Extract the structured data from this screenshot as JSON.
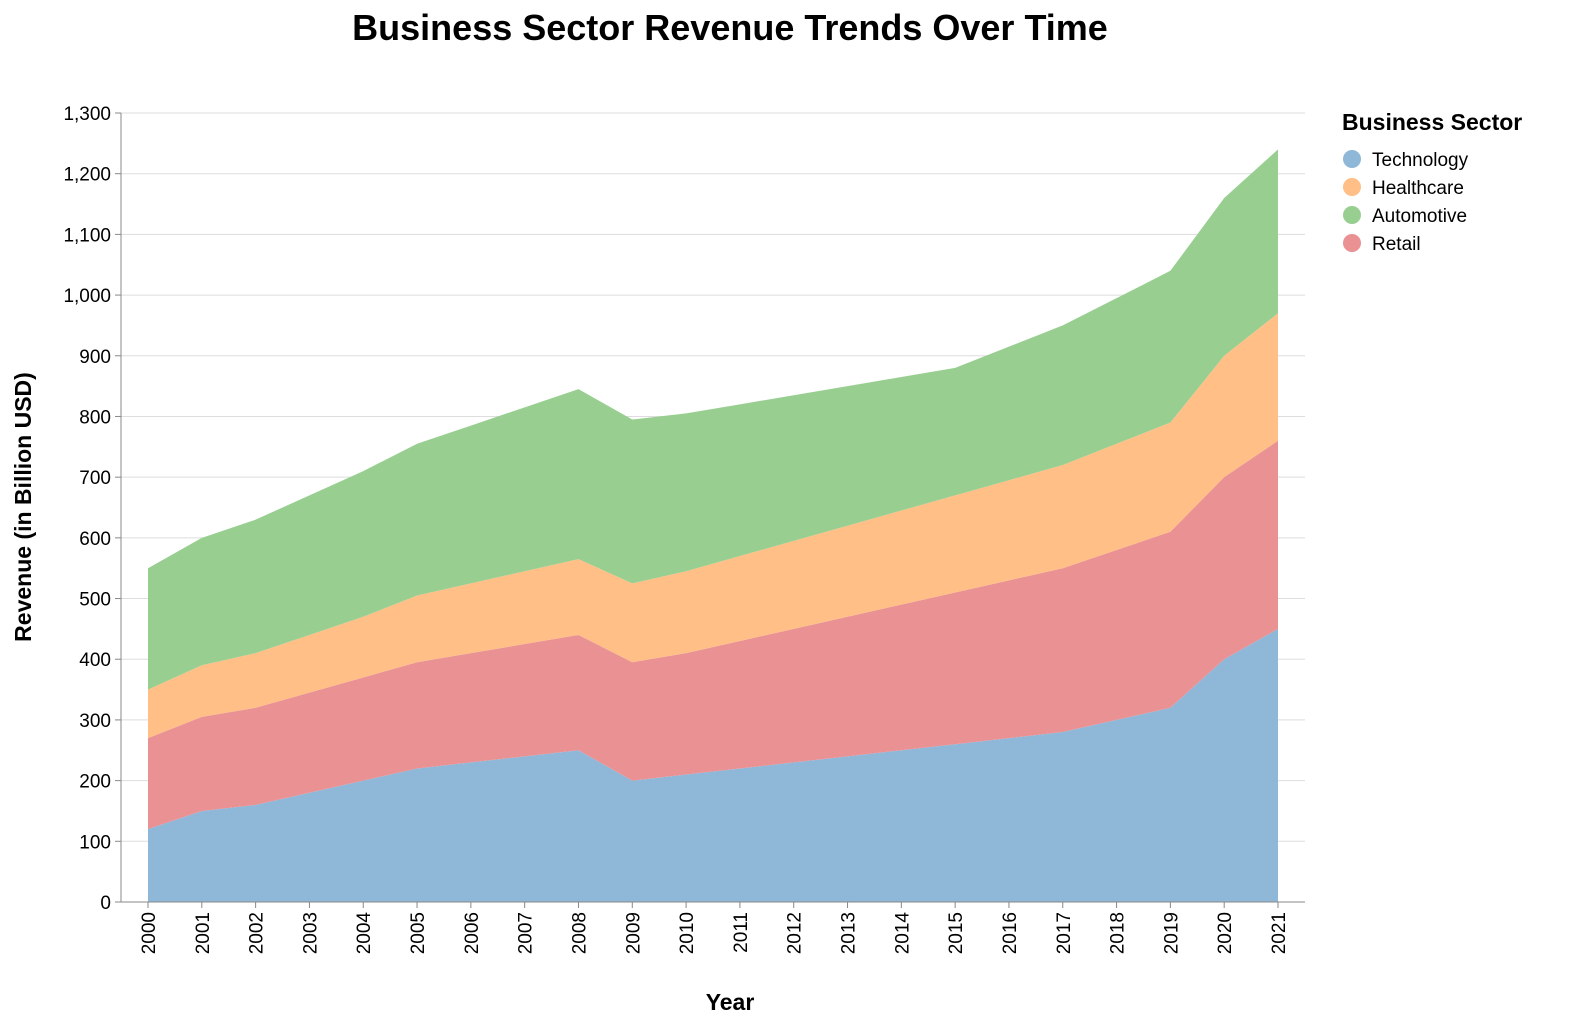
{
  "chart_data": {
    "type": "area",
    "stacked": true,
    "title": "Business Sector Revenue Trends Over Time",
    "xlabel": "Year",
    "ylabel": "Revenue (in Billion USD)",
    "ylim": [
      0,
      1300
    ],
    "yticks": [
      0,
      100,
      200,
      300,
      400,
      500,
      600,
      700,
      800,
      900,
      1000,
      1100,
      1200,
      1300
    ],
    "ytick_labels": [
      "0",
      "100",
      "200",
      "300",
      "400",
      "500",
      "600",
      "700",
      "800",
      "900",
      "1,000",
      "1,100",
      "1,200",
      "1,300"
    ],
    "grid": true,
    "legend": {
      "title": "Business Sector",
      "placement": "right"
    },
    "x": [
      "2000",
      "2001",
      "2002",
      "2003",
      "2004",
      "2005",
      "2006",
      "2007",
      "2008",
      "2009",
      "2010",
      "2011",
      "2012",
      "2013",
      "2014",
      "2015",
      "2016",
      "2017",
      "2018",
      "2019",
      "2020",
      "2021"
    ],
    "series": [
      {
        "name": "Technology",
        "color": "#8fb8d8",
        "values": [
          120,
          150,
          160,
          180,
          200,
          220,
          230,
          240,
          250,
          200,
          210,
          220,
          230,
          240,
          250,
          260,
          270,
          280,
          300,
          320,
          400,
          450
        ]
      },
      {
        "name": "Retail",
        "color": "#ea9194",
        "values": [
          150,
          155,
          160,
          165,
          170,
          175,
          180,
          185,
          190,
          195,
          200,
          210,
          220,
          230,
          240,
          250,
          260,
          270,
          280,
          290,
          300,
          310
        ]
      },
      {
        "name": "Healthcare",
        "color": "#ffbf87",
        "values": [
          80,
          85,
          90,
          95,
          100,
          110,
          115,
          120,
          125,
          130,
          135,
          140,
          145,
          150,
          155,
          160,
          165,
          170,
          175,
          180,
          200,
          210
        ]
      },
      {
        "name": "Automotive",
        "color": "#98cf91",
        "values": [
          200,
          210,
          220,
          230,
          240,
          250,
          260,
          270,
          280,
          270,
          260,
          250,
          240,
          230,
          220,
          210,
          220,
          230,
          240,
          250,
          260,
          270
        ]
      }
    ],
    "legend_order": [
      {
        "name": "Technology",
        "color": "#8fb8d8"
      },
      {
        "name": "Healthcare",
        "color": "#ffbf87"
      },
      {
        "name": "Automotive",
        "color": "#98cf91"
      },
      {
        "name": "Retail",
        "color": "#ea9194"
      }
    ]
  }
}
